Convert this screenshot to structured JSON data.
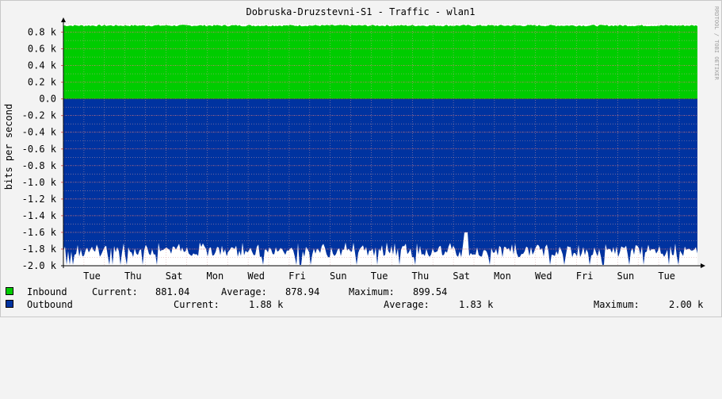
{
  "chart_data": {
    "type": "area",
    "title": "Dobruska-Druzstevni-S1 - Traffic - wlan1",
    "ylabel": "bits per second",
    "ylim": [
      -2000,
      900
    ],
    "y_ticks": [
      {
        "value": 800,
        "label": "0.8 k"
      },
      {
        "value": 600,
        "label": "0.6 k"
      },
      {
        "value": 400,
        "label": "0.4 k"
      },
      {
        "value": 200,
        "label": "0.2 k"
      },
      {
        "value": 0,
        "label": "0.0"
      },
      {
        "value": -200,
        "label": "-0.2 k"
      },
      {
        "value": -400,
        "label": "-0.4 k"
      },
      {
        "value": -600,
        "label": "-0.6 k"
      },
      {
        "value": -800,
        "label": "-0.8 k"
      },
      {
        "value": -1000,
        "label": "-1.0 k"
      },
      {
        "value": -1200,
        "label": "-1.2 k"
      },
      {
        "value": -1400,
        "label": "-1.4 k"
      },
      {
        "value": -1600,
        "label": "-1.6 k"
      },
      {
        "value": -1800,
        "label": "-1.8 k"
      },
      {
        "value": -2000,
        "label": "-2.0 k"
      }
    ],
    "x_ticks": [
      "Tue",
      "Thu",
      "Sat",
      "Mon",
      "Wed",
      "Fri",
      "Sun",
      "Tue",
      "Thu",
      "Sat",
      "Mon",
      "Wed",
      "Fri",
      "Sun",
      "Tue"
    ],
    "grid": true,
    "series": [
      {
        "name": "Inbound",
        "color": "#00CC00",
        "direction": "up",
        "typical": 879,
        "range": [
          870,
          899
        ]
      },
      {
        "name": "Outbound",
        "color": "#0033A0",
        "direction": "down",
        "typical": 1830,
        "range": [
          1740,
          2000
        ],
        "peak": 1600
      }
    ]
  },
  "legend": {
    "inbound": {
      "name": "Inbound",
      "current_label": "Current:",
      "current": "881.04",
      "average_label": "Average:",
      "average": "878.94",
      "maximum_label": "Maximum:",
      "maximum": "899.54"
    },
    "outbound": {
      "name": "Outbound",
      "current_label": "Current:",
      "current": "1.88 k",
      "average_label": "Average:",
      "average": "1.83 k",
      "maximum_label": "Maximum:",
      "maximum": "2.00 k"
    }
  },
  "watermark": "RRDTOOL / TOBI OETIKER",
  "colors": {
    "background": "#F3F3F3",
    "plot_background": "#FFFFFF",
    "grid": "#E8A0A0"
  }
}
